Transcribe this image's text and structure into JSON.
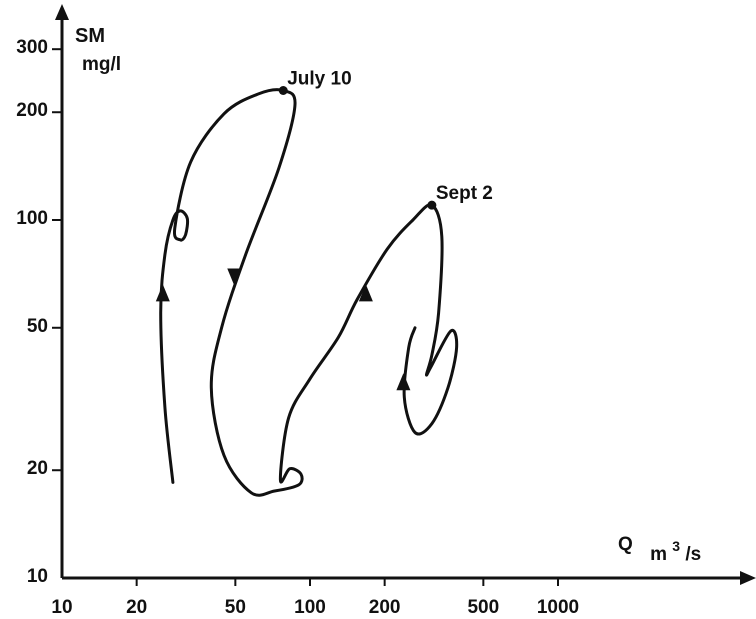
{
  "chart_data": {
    "type": "line",
    "title": "",
    "x_scale": "log",
    "y_scale": "log",
    "xlim": [
      10,
      2000
    ],
    "ylim": [
      10,
      300
    ],
    "grid": false,
    "x_ticks": [
      "10",
      "20",
      "50",
      "100",
      "200",
      "500",
      "1000"
    ],
    "y_ticks": [
      "10",
      "20",
      "50",
      "100",
      "200",
      "300"
    ],
    "ylabel_line1": "SM",
    "ylabel_line2": "mg/l",
    "xlabel_base": "Q",
    "xlabel_unit_prefix": "m",
    "xlabel_unit_exp": "3",
    "xlabel_unit_suffix": "/s",
    "annotations": [
      {
        "text": "July 10",
        "x": 78,
        "y": 230
      },
      {
        "text": "Sept 2",
        "x": 310,
        "y": 110
      }
    ],
    "series": [
      {
        "values": [
          [
            28,
            18.5
          ],
          [
            26,
            30
          ],
          [
            25,
            55
          ],
          [
            26,
            80
          ],
          [
            28,
            100
          ],
          [
            30,
            106
          ],
          [
            32,
            101
          ],
          [
            31.5,
            91
          ],
          [
            30,
            88
          ],
          [
            28.5,
            95
          ],
          [
            33,
            145
          ],
          [
            45,
            198
          ],
          [
            62,
            225
          ],
          [
            78,
            230
          ],
          [
            87,
            210
          ],
          [
            75,
            140
          ],
          [
            55,
            80
          ],
          [
            44,
            50
          ],
          [
            40,
            34
          ],
          [
            45,
            22
          ],
          [
            58,
            17.3
          ],
          [
            72,
            17.5
          ],
          [
            90,
            18.2
          ],
          [
            92,
            19.5
          ],
          [
            83,
            20.2
          ],
          [
            76,
            18.8
          ],
          [
            82,
            28
          ],
          [
            100,
            36
          ],
          [
            130,
            47
          ],
          [
            155,
            60
          ],
          [
            205,
            83
          ],
          [
            260,
            100
          ],
          [
            310,
            110
          ],
          [
            340,
            90
          ],
          [
            330,
            55
          ],
          [
            310,
            42
          ],
          [
            295,
            37
          ],
          [
            308,
            39
          ],
          [
            370,
            49
          ],
          [
            390,
            44
          ],
          [
            360,
            34
          ],
          [
            310,
            27
          ],
          [
            265,
            25.5
          ],
          [
            240,
            32
          ],
          [
            250,
            44
          ],
          [
            265,
            50
          ]
        ]
      }
    ],
    "direction_arrows": [
      {
        "x": 25.5,
        "y": 62,
        "dir": "up"
      },
      {
        "x": 49.5,
        "y": 70,
        "dir": "down"
      },
      {
        "x": 168,
        "y": 62,
        "dir": "up"
      },
      {
        "x": 238,
        "y": 35,
        "dir": "up"
      }
    ]
  }
}
